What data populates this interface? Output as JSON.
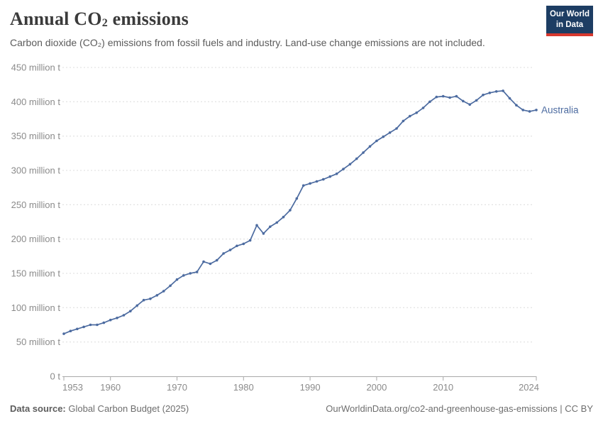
{
  "header": {
    "title_pre": "Annual CO",
    "title_sub": "2",
    "title_post": " emissions",
    "subtitle": "Carbon dioxide (CO₂) emissions from fossil fuels and industry. Land-use change emissions are not included."
  },
  "logo": {
    "line1": "Our World",
    "line2": "in Data",
    "bg_color": "#1d3d63",
    "accent_color": "#d7382e"
  },
  "chart_data": {
    "type": "line",
    "title": "Annual CO₂ emissions",
    "entity": "Australia",
    "unit": "million tonnes of CO₂",
    "xlim": [
      1953,
      2024
    ],
    "ylim": [
      0,
      450
    ],
    "x_ticks": [
      1953,
      1960,
      1970,
      1980,
      1990,
      2000,
      2010,
      2024
    ],
    "y_ticks": [
      0,
      50,
      100,
      150,
      200,
      250,
      300,
      350,
      400,
      450
    ],
    "y_unit": "million t",
    "y_zero_label": "0 t",
    "grid": "horizontal-dashed",
    "legend_position": "end-of-line",
    "colors": {
      "line": "#4c6ba0",
      "grid": "#dcdcdc",
      "axis": "#a9a9a9",
      "axis_text": "#8b8b8b"
    },
    "x": [
      1953,
      1954,
      1955,
      1956,
      1957,
      1958,
      1959,
      1960,
      1961,
      1962,
      1963,
      1964,
      1965,
      1966,
      1967,
      1968,
      1969,
      1970,
      1971,
      1972,
      1973,
      1974,
      1975,
      1976,
      1977,
      1978,
      1979,
      1980,
      1981,
      1982,
      1983,
      1984,
      1985,
      1986,
      1987,
      1988,
      1989,
      1990,
      1991,
      1992,
      1993,
      1994,
      1995,
      1996,
      1997,
      1998,
      1999,
      2000,
      2001,
      2002,
      2003,
      2004,
      2005,
      2006,
      2007,
      2008,
      2009,
      2010,
      2011,
      2012,
      2013,
      2014,
      2015,
      2016,
      2017,
      2018,
      2019,
      2020,
      2021,
      2022,
      2023,
      2024
    ],
    "values": [
      62,
      66,
      69,
      72,
      75,
      75,
      78,
      82,
      85,
      89,
      95,
      103,
      111,
      113,
      118,
      124,
      132,
      141,
      147,
      150,
      152,
      167,
      164,
      169,
      179,
      184,
      190,
      193,
      198,
      220,
      208,
      218,
      224,
      232,
      242,
      259,
      278,
      281,
      284,
      287,
      291,
      295,
      302,
      309,
      317,
      326,
      335,
      343,
      349,
      355,
      361,
      372,
      379,
      384,
      391,
      400,
      407,
      408,
      406,
      408,
      401,
      396,
      402,
      410,
      413,
      415,
      416,
      405,
      395,
      388,
      386,
      388
    ]
  },
  "footer": {
    "source_label": "Data source:",
    "source_value": " Global Carbon Budget (2025)",
    "attribution": "OurWorldinData.org/co2-and-greenhouse-gas-emissions | CC BY"
  }
}
